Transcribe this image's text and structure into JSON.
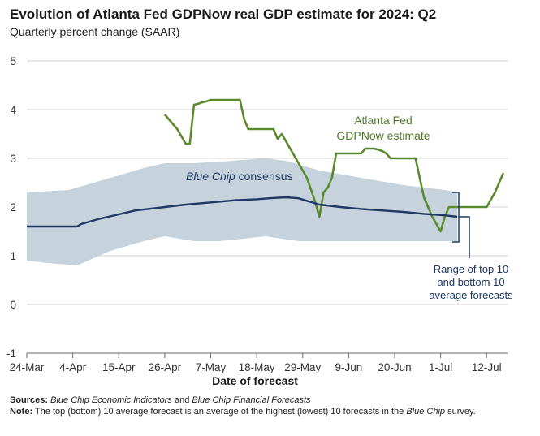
{
  "title": "Evolution of Atlanta Fed GDPNow real GDP estimate for 2024: Q2",
  "subtitle": "Quarterly percent change (SAAR)",
  "footer": {
    "sources_label": "Sources:",
    "sources_part1": "Blue Chip Economic Indicators",
    "sources_and": " and ",
    "sources_part2": "Blue Chip Financial Forecasts",
    "note_label": "Note:",
    "note_text1": " The top (bottom) 10 average forecast is an average of the highest (lowest) 10 forecasts in the ",
    "note_italic": "Blue Chip",
    "note_text2": " survey."
  },
  "chart_data": {
    "type": "line",
    "xlabel": "Date of forecast",
    "ylabel": "",
    "ylim": [
      -1,
      5
    ],
    "yticks": [
      -1,
      0,
      1,
      2,
      3,
      4,
      5
    ],
    "x_ticks": [
      {
        "day": 0,
        "label": "24-Mar"
      },
      {
        "day": 11,
        "label": "4-Apr"
      },
      {
        "day": 22,
        "label": "15-Apr"
      },
      {
        "day": 33,
        "label": "26-Apr"
      },
      {
        "day": 44,
        "label": "7-May"
      },
      {
        "day": 55,
        "label": "18-May"
      },
      {
        "day": 66,
        "label": "29-May"
      },
      {
        "day": 77,
        "label": "9-Jun"
      },
      {
        "day": 88,
        "label": "20-Jun"
      },
      {
        "day": 99,
        "label": "1-Jul"
      },
      {
        "day": 110,
        "label": "12-Jul"
      }
    ],
    "x_range_days": [
      0,
      115
    ],
    "grid": true,
    "annotations": {
      "gdpnow_line1": "Atlanta Fed",
      "gdpnow_line2": "GDPNow estimate",
      "bluechip_italic": "Blue Chip",
      "bluechip_rest": " consensus",
      "range_line1": "Range of top 10",
      "range_line2": "and bottom 10",
      "range_line3": "average forecasts"
    },
    "colors": {
      "gdpnow": "#5b8a2e",
      "consensus": "#1f3864",
      "range_band": "#c6d3dc",
      "grid": "#d0d0d0"
    },
    "series": [
      {
        "key": "gdpnow",
        "points": [
          [
            33,
            3.9
          ],
          [
            34,
            3.8
          ],
          [
            35,
            3.7
          ],
          [
            36,
            3.6
          ],
          [
            37,
            3.45
          ],
          [
            38,
            3.3
          ],
          [
            39,
            3.3
          ],
          [
            40,
            4.1
          ],
          [
            41,
            4.12
          ],
          [
            42,
            4.15
          ],
          [
            43,
            4.17
          ],
          [
            44,
            4.2
          ],
          [
            45,
            4.2
          ],
          [
            46,
            4.2
          ],
          [
            47,
            4.2
          ],
          [
            48,
            4.2
          ],
          [
            49,
            4.2
          ],
          [
            50,
            4.2
          ],
          [
            51,
            4.2
          ],
          [
            52,
            3.8
          ],
          [
            53,
            3.6
          ],
          [
            54,
            3.6
          ],
          [
            55,
            3.6
          ],
          [
            56,
            3.6
          ],
          [
            57,
            3.6
          ],
          [
            58,
            3.6
          ],
          [
            59,
            3.6
          ],
          [
            60,
            3.4
          ],
          [
            61,
            3.5
          ],
          [
            62,
            3.35
          ],
          [
            63,
            3.2
          ],
          [
            64,
            3.05
          ],
          [
            65,
            2.9
          ],
          [
            66,
            2.75
          ],
          [
            67,
            2.6
          ],
          [
            68,
            2.35
          ],
          [
            69,
            2.1
          ],
          [
            70,
            1.8
          ],
          [
            71,
            2.3
          ],
          [
            72,
            2.4
          ],
          [
            73,
            2.6
          ],
          [
            74,
            3.1
          ],
          [
            75,
            3.1
          ],
          [
            76,
            3.1
          ],
          [
            77,
            3.1
          ],
          [
            78,
            3.1
          ],
          [
            79,
            3.1
          ],
          [
            80,
            3.1
          ],
          [
            81,
            3.2
          ],
          [
            82,
            3.2
          ],
          [
            83,
            3.2
          ],
          [
            84,
            3.18
          ],
          [
            85,
            3.15
          ],
          [
            86,
            3.1
          ],
          [
            87,
            3.0
          ],
          [
            88,
            3.0
          ],
          [
            89,
            3.0
          ],
          [
            90,
            3.0
          ],
          [
            91,
            3.0
          ],
          [
            92,
            3.0
          ],
          [
            93,
            3.0
          ],
          [
            94,
            2.6
          ],
          [
            95,
            2.2
          ],
          [
            96,
            2.0
          ],
          [
            97,
            1.8
          ],
          [
            98,
            1.65
          ],
          [
            99,
            1.5
          ],
          [
            100,
            1.8
          ],
          [
            101,
            2.0
          ],
          [
            102,
            2.0
          ],
          [
            103,
            2.0
          ],
          [
            104,
            2.0
          ],
          [
            105,
            2.0
          ],
          [
            106,
            2.0
          ],
          [
            107,
            2.0
          ],
          [
            108,
            2.0
          ],
          [
            109,
            2.0
          ],
          [
            110,
            2.0
          ],
          [
            111,
            2.15
          ],
          [
            112,
            2.3
          ],
          [
            113,
            2.5
          ],
          [
            114,
            2.7
          ]
        ]
      },
      {
        "key": "consensus",
        "points": [
          [
            0,
            1.6
          ],
          [
            5,
            1.6
          ],
          [
            12,
            1.6
          ],
          [
            13,
            1.65
          ],
          [
            17,
            1.75
          ],
          [
            22,
            1.85
          ],
          [
            26,
            1.93
          ],
          [
            33,
            2.0
          ],
          [
            38,
            2.05
          ],
          [
            42,
            2.08
          ],
          [
            46,
            2.11
          ],
          [
            50,
            2.14
          ],
          [
            55,
            2.16
          ],
          [
            58,
            2.18
          ],
          [
            62,
            2.2
          ],
          [
            65,
            2.18
          ],
          [
            70,
            2.05
          ],
          [
            75,
            2.0
          ],
          [
            80,
            1.96
          ],
          [
            85,
            1.93
          ],
          [
            90,
            1.9
          ],
          [
            95,
            1.86
          ],
          [
            100,
            1.83
          ],
          [
            103,
            1.8
          ]
        ]
      }
    ],
    "range_band": {
      "upper": [
        [
          0,
          2.3
        ],
        [
          10,
          2.35
        ],
        [
          20,
          2.6
        ],
        [
          28,
          2.8
        ],
        [
          33,
          2.9
        ],
        [
          40,
          2.9
        ],
        [
          46,
          2.93
        ],
        [
          52,
          2.97
        ],
        [
          57,
          3.0
        ],
        [
          62,
          2.95
        ],
        [
          70,
          2.75
        ],
        [
          80,
          2.6
        ],
        [
          90,
          2.45
        ],
        [
          100,
          2.35
        ],
        [
          103,
          2.3
        ]
      ],
      "lower": [
        [
          0,
          0.9
        ],
        [
          5,
          0.85
        ],
        [
          12,
          0.8
        ],
        [
          20,
          1.1
        ],
        [
          28,
          1.3
        ],
        [
          33,
          1.4
        ],
        [
          40,
          1.3
        ],
        [
          46,
          1.3
        ],
        [
          52,
          1.35
        ],
        [
          57,
          1.4
        ],
        [
          65,
          1.3
        ],
        [
          75,
          1.3
        ],
        [
          85,
          1.3
        ],
        [
          95,
          1.3
        ],
        [
          103,
          1.3
        ]
      ]
    }
  }
}
